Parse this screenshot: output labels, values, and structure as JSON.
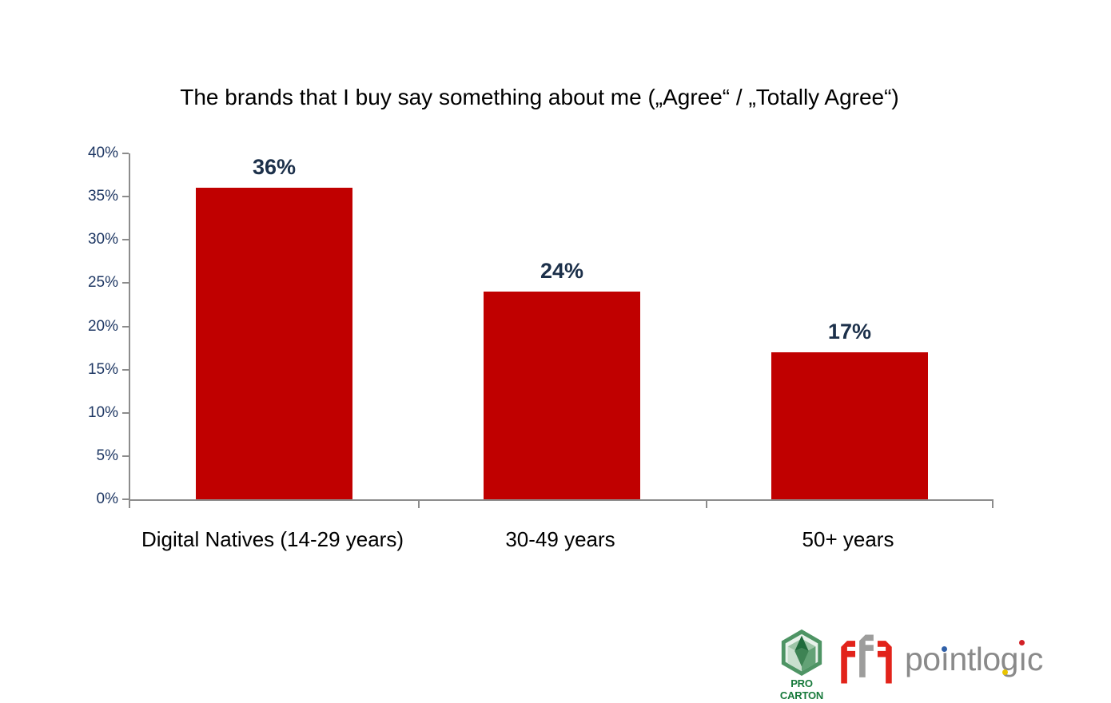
{
  "chart_data": {
    "type": "bar",
    "title": "The brands that I buy say something about me („Agree“ / „Totally Agree“)",
    "categories": [
      "Digital Natives (14-29 years)",
      "30-49 years",
      "50+ years"
    ],
    "values": [
      36,
      24,
      17
    ],
    "value_labels": [
      "36%",
      "24%",
      "17%"
    ],
    "ytick_labels": [
      "40%",
      "35%",
      "30%",
      "25%",
      "20%",
      "15%",
      "10%",
      "5%",
      "0%"
    ],
    "ylim": [
      0,
      40
    ],
    "xlabel": "",
    "ylabel": "",
    "grid": false,
    "legend": "none",
    "bar_color": "#C00000",
    "value_label_color": "#1C304A",
    "tick_label_color": "#1F3864",
    "axis_color": "#8C8C8C"
  },
  "logos": {
    "pro_carton": {
      "icon": "hexagon-cube-arrow-icon",
      "label": "PRO CARTON",
      "green": "#17793B"
    },
    "ffi": {
      "icon": "ffi-letters-icon",
      "red": "#E2231A",
      "gray": "#9D9D9C"
    },
    "pointlogic": {
      "seg1": "po",
      "dotless_i": "ı",
      "seg2": "ntl",
      "seg3": "og",
      "seg4": "c",
      "gray": "#8A8A8A",
      "dot_blue": "#3060A8",
      "dot_red": "#D22026",
      "dot_yellow": "#E9C400"
    }
  }
}
